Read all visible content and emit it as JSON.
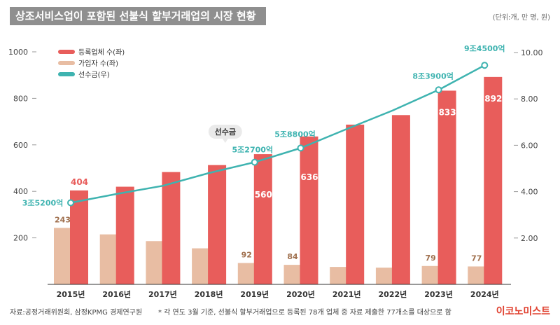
{
  "header": {
    "title": "상조서비스업이 포함된 선불식 할부거래업의 시장 현황",
    "unit": "(단위:개, 만 명, 원)"
  },
  "footer": {
    "source": "자료:공정거래위원회, 삼정KPMG 경제연구원",
    "note": "* 각 연도 3월 기준, 선불식 할부거래업으로 등록된 78개 업체 중 자료 제출한 77개소를 대상으로 함",
    "brand": "이코노미스트"
  },
  "colors": {
    "companies": "#e85d5b",
    "subscribers": "#e8bda3",
    "prepaid": "#3eb3b0",
    "subscriber_label": "#a0704e",
    "axis": "#444444"
  },
  "chart_data": {
    "type": "bar",
    "categories": [
      "2015년",
      "2016년",
      "2017년",
      "2018년",
      "2019년",
      "2020년",
      "2021년",
      "2022년",
      "2023년",
      "2024년"
    ],
    "series": [
      {
        "name": "등록업체 수(좌)",
        "kind": "bar",
        "axis": "left",
        "values": [
          404,
          420,
          483,
          513,
          560,
          636,
          687,
          728,
          833,
          892
        ],
        "labels": [
          "404",
          "",
          "",
          "",
          "560",
          "636",
          "",
          "",
          "833",
          "892"
        ]
      },
      {
        "name": "가입자 수(좌)",
        "kind": "bar",
        "axis": "left",
        "values": [
          243,
          215,
          186,
          155,
          92,
          84,
          75,
          72,
          79,
          77
        ],
        "labels": [
          "243",
          "",
          "",
          "",
          "92",
          "84",
          "",
          "",
          "79",
          "77"
        ]
      },
      {
        "name": "선수금(우)",
        "kind": "line",
        "axis": "right",
        "values": [
          3.52,
          3.9,
          4.25,
          4.8,
          5.27,
          5.88,
          6.7,
          7.5,
          8.39,
          9.45
        ],
        "labels": [
          "3조5200억",
          "",
          "",
          "",
          "5조2700억",
          "5조8800억",
          "",
          "",
          "8조3900억",
          "9조4500억"
        ],
        "markers": [
          true,
          false,
          false,
          false,
          true,
          true,
          false,
          false,
          true,
          true
        ]
      }
    ],
    "yleft": {
      "ylim": [
        0,
        1000
      ],
      "ticks": [
        "200",
        "400",
        "600",
        "800",
        "1000"
      ]
    },
    "yright": {
      "ylim": [
        0,
        10
      ],
      "ticks": [
        "2.00",
        "4.00",
        "6.00",
        "8.00",
        "10.00"
      ]
    },
    "legend": {
      "position": "top-left",
      "items": [
        "등록업체 수(좌)",
        "가입자 수(좌)",
        "선수금(우)"
      ]
    },
    "callout": "선수금",
    "grid": false
  }
}
